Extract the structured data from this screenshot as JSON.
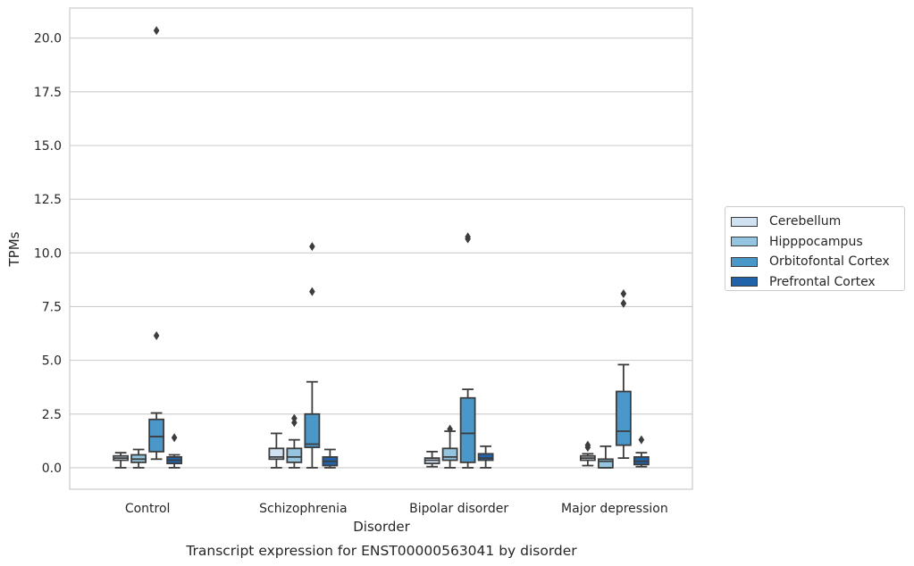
{
  "chart_data": {
    "type": "box",
    "title": "Transcript expression for ENST00000563041 by disorder",
    "xlabel": "Disorder",
    "ylabel": "TPMs",
    "ylim": [
      -1.0,
      21.4
    ],
    "yticks": [
      "0.0",
      "2.5",
      "5.0",
      "7.5",
      "10.0",
      "12.5",
      "15.0",
      "17.5",
      "20.0"
    ],
    "ytick_values": [
      0,
      2.5,
      5,
      7.5,
      10,
      12.5,
      15,
      17.5,
      20
    ],
    "categories": [
      "Control",
      "Schizophrenia",
      "Bipolar disorder",
      "Major depression"
    ],
    "grid": "horizontal",
    "legend_position": "right-outside",
    "series": [
      {
        "name": "Cerebellum",
        "color": "#d0e1f2",
        "boxes": [
          {
            "whislo": 0.0,
            "q1": 0.35,
            "med": 0.45,
            "q3": 0.55,
            "whishi": 0.7,
            "fliers": []
          },
          {
            "whislo": 0.0,
            "q1": 0.4,
            "med": 0.5,
            "q3": 0.9,
            "whishi": 1.6,
            "fliers": []
          },
          {
            "whislo": 0.05,
            "q1": 0.2,
            "med": 0.35,
            "q3": 0.45,
            "whishi": 0.75,
            "fliers": []
          },
          {
            "whislo": 0.1,
            "q1": 0.35,
            "med": 0.45,
            "q3": 0.55,
            "whishi": 0.65,
            "fliers": [
              0.95,
              1.05
            ]
          }
        ]
      },
      {
        "name": "Hipppocampus",
        "color": "#94c4df",
        "boxes": [
          {
            "whislo": 0.0,
            "q1": 0.25,
            "med": 0.4,
            "q3": 0.6,
            "whishi": 0.85,
            "fliers": []
          },
          {
            "whislo": 0.0,
            "q1": 0.25,
            "med": 0.5,
            "q3": 0.9,
            "whishi": 1.3,
            "fliers": [
              2.1,
              2.3
            ]
          },
          {
            "whislo": 0.0,
            "q1": 0.35,
            "med": 0.5,
            "q3": 0.9,
            "whishi": 1.7,
            "fliers": [
              1.8
            ]
          },
          {
            "whislo": 0.0,
            "q1": 0.0,
            "med": 0.3,
            "q3": 0.4,
            "whishi": 1.0,
            "fliers": []
          }
        ]
      },
      {
        "name": "Orbitofontal Cortex",
        "color": "#4a98c9",
        "boxes": [
          {
            "whislo": 0.4,
            "q1": 0.75,
            "med": 1.45,
            "q3": 2.25,
            "whishi": 2.55,
            "fliers": [
              6.15,
              20.35
            ]
          },
          {
            "whislo": 0.0,
            "q1": 0.95,
            "med": 1.1,
            "q3": 2.5,
            "whishi": 4.0,
            "fliers": [
              8.2,
              10.3
            ]
          },
          {
            "whislo": 0.0,
            "q1": 0.25,
            "med": 1.6,
            "q3": 3.25,
            "whishi": 3.65,
            "fliers": [
              10.65,
              10.75
            ]
          },
          {
            "whislo": 0.45,
            "q1": 1.05,
            "med": 1.7,
            "q3": 3.55,
            "whishi": 4.8,
            "fliers": [
              7.65,
              8.1
            ]
          }
        ]
      },
      {
        "name": "Prefrontal Cortex",
        "color": "#2163aa",
        "boxes": [
          {
            "whislo": 0.0,
            "q1": 0.2,
            "med": 0.35,
            "q3": 0.5,
            "whishi": 0.6,
            "fliers": [
              1.4
            ]
          },
          {
            "whislo": 0.0,
            "q1": 0.1,
            "med": 0.3,
            "q3": 0.5,
            "whishi": 0.85,
            "fliers": []
          },
          {
            "whislo": 0.0,
            "q1": 0.35,
            "med": 0.45,
            "q3": 0.65,
            "whishi": 1.0,
            "fliers": []
          },
          {
            "whislo": 0.05,
            "q1": 0.15,
            "med": 0.3,
            "q3": 0.5,
            "whishi": 0.7,
            "fliers": [
              1.3
            ]
          }
        ]
      }
    ]
  }
}
